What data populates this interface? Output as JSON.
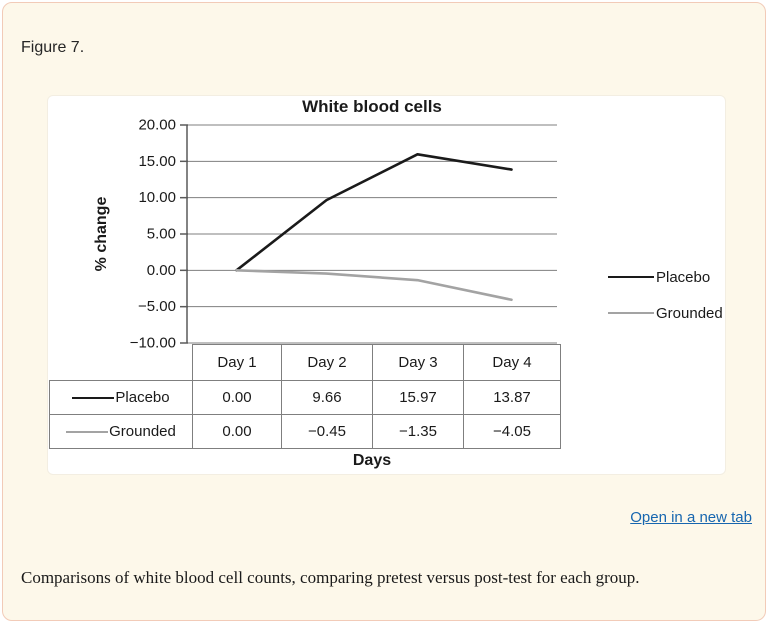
{
  "page": {
    "figure_label": "Figure 7.",
    "link_label": "Open in a new tab",
    "caption": "Comparisons of white blood cell counts, comparing pretest versus post-test for each group.",
    "colors": {
      "card_bg": "#FDF8EA",
      "card_border": "#F2CBB8",
      "link": "#1766AF",
      "axis_gray": "#7F7F7F"
    }
  },
  "chart_data": {
    "type": "line",
    "title": "White blood cells",
    "xlabel": "Days",
    "ylabel": "% change",
    "categories": [
      "Day 1",
      "Day 2",
      "Day 3",
      "Day 4"
    ],
    "series": [
      {
        "name": "Placebo",
        "color": "#1A1A1A",
        "values": [
          0.0,
          9.66,
          15.97,
          13.87
        ],
        "labels": [
          "0.00",
          "9.66",
          "15.97",
          "13.87"
        ]
      },
      {
        "name": "Grounded",
        "color": "#A3A3A3",
        "values": [
          0.0,
          -0.45,
          -1.35,
          -4.05
        ],
        "labels": [
          "0.00",
          "−0.45",
          "−1.35",
          "−4.05"
        ]
      }
    ],
    "ylim": [
      -10,
      20
    ],
    "ytick_values": [
      20,
      15,
      10,
      5,
      0,
      -5,
      -10
    ],
    "ytick_labels": [
      "20.00",
      "15.00",
      "10.00",
      "5.00",
      "0.00",
      "−5.00",
      "−10.00"
    ],
    "grid": true,
    "legend_position": "right"
  }
}
